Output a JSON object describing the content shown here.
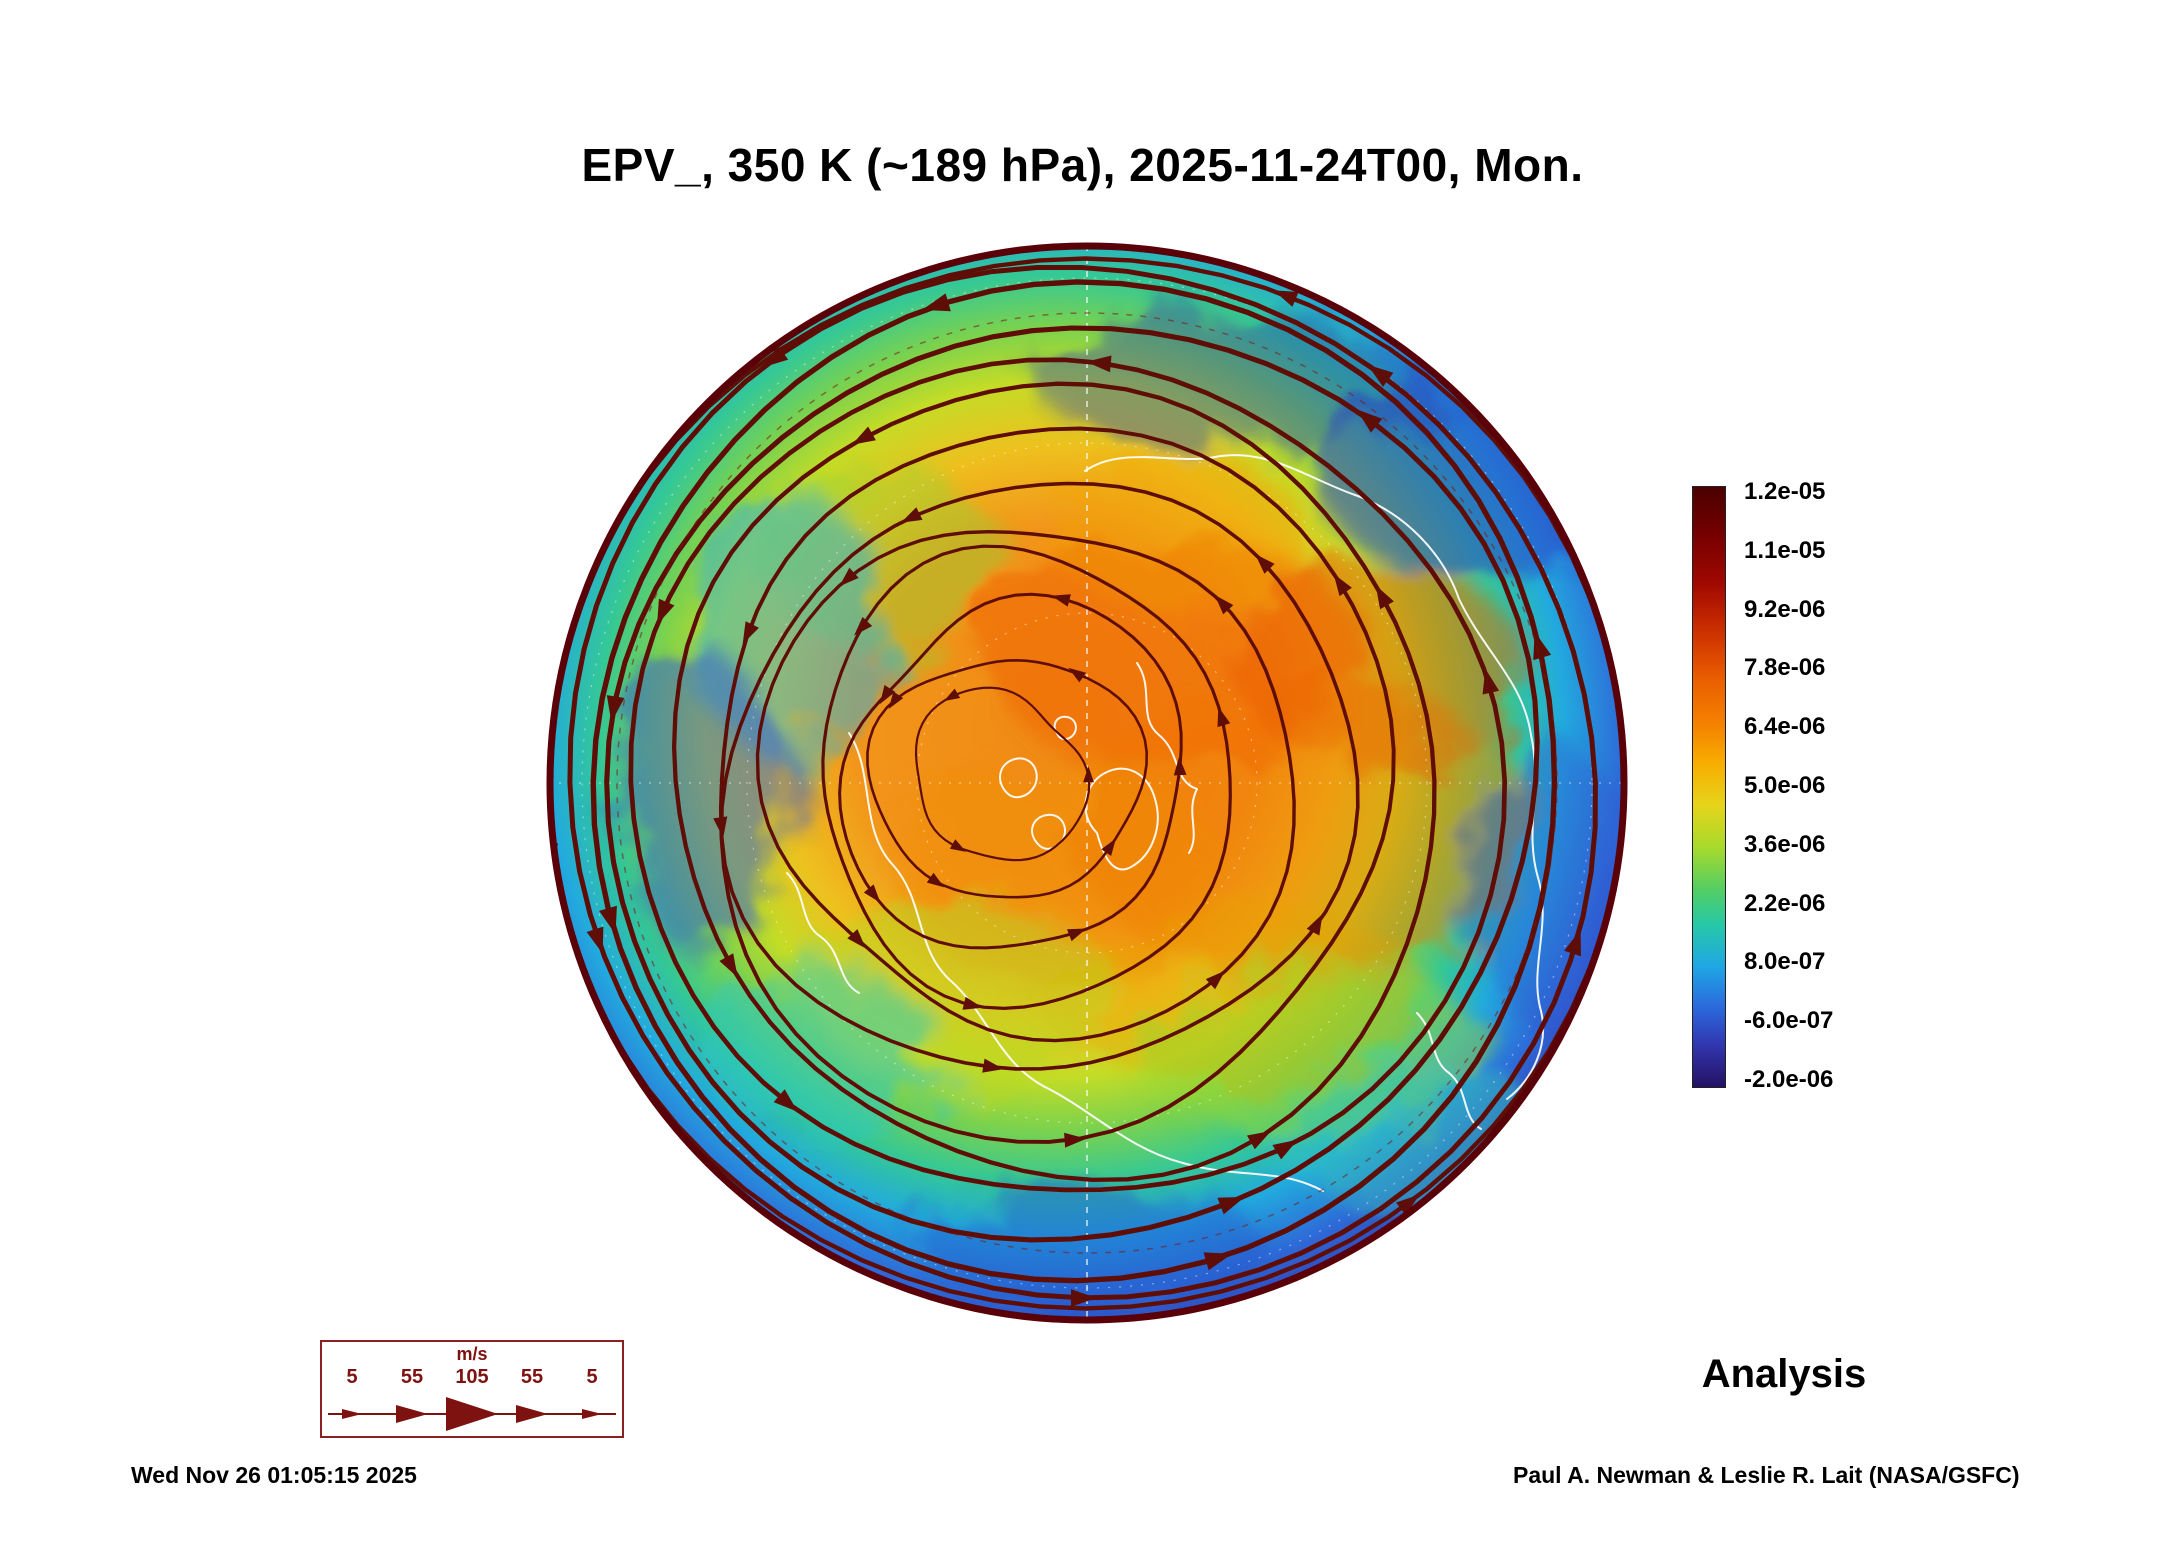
{
  "title": "EPV_, 350 K (~189 hPa), 2025-11-24T00, Mon.",
  "analysis_label": "Analysis",
  "timestamp": "Wed Nov 26 01:05:15 2025",
  "credit": "Paul A. Newman & Leslie R. Lait (NASA/GSFC)",
  "colorbar": {
    "tick_labels": [
      "1.2e-05",
      "1.1e-05",
      "9.2e-06",
      "7.8e-06",
      "6.4e-06",
      "5.0e-06",
      "3.6e-06",
      "2.2e-06",
      "8.0e-07",
      "-6.0e-07",
      "-2.0e-06"
    ],
    "gradient_css": [
      "#4a0000 0%",
      "#760000 8%",
      "#a00800 16%",
      "#cc3000 24%",
      "#ea5e00 32%",
      "#f58400 40%",
      "#f8ad00 46%",
      "#e6d41a 53%",
      "#a8da2c 60%",
      "#54ce62 67%",
      "#26c8a8 73%",
      "#1fa6e4 80%",
      "#2b67dc 87%",
      "#3136ae 93%",
      "#251163 100%"
    ]
  },
  "wind_legend": {
    "units": "m/s",
    "ticks": [
      "5",
      "55",
      "105",
      "55",
      "5"
    ]
  },
  "map": {
    "field_gradient": [
      "0% #f08a14",
      "30% #f2951a",
      "42% #eec01e",
      "52% #c4dc26",
      "60% #7ad24e",
      "68% #34c896",
      "76% #22aade",
      "85% #2e6ad8",
      "92% #3340b4",
      "100% #2a1a74"
    ],
    "streamline_color": "#5e0e06",
    "coastline_color": "#ffffff"
  },
  "chart_data": {
    "type": "heatmap",
    "title": "EPV_, 350 K (~189 hPa), 2025-11-24T00, Mon.",
    "quantity": "EPV_",
    "theta_level_K": 350,
    "approx_pressure_hPa": 189,
    "valid_time": "2025-11-24T00",
    "valid_day": "Mon.",
    "product": "Analysis",
    "projection": "Northern Hemisphere polar stereographic disk",
    "colorbar_ticks": [
      1.2e-05,
      1.1e-05,
      9.2e-06,
      7.8e-06,
      6.4e-06,
      5e-06,
      3.6e-06,
      2.2e-06,
      8e-07,
      -6e-07,
      -2e-06
    ],
    "colorbar_range": [
      -2e-06,
      1.2e-05
    ],
    "overlays": [
      "wind streamlines with arrowheads",
      "coastlines",
      "latitude-longitude graticule"
    ],
    "wind_speed_legend_ms": [
      5,
      55,
      105,
      55,
      5
    ],
    "generated_timestamp": "Wed Nov 26 01:05:15 2025",
    "credit": "Paul A. Newman & Leslie R. Lait (NASA/GSFC)"
  }
}
